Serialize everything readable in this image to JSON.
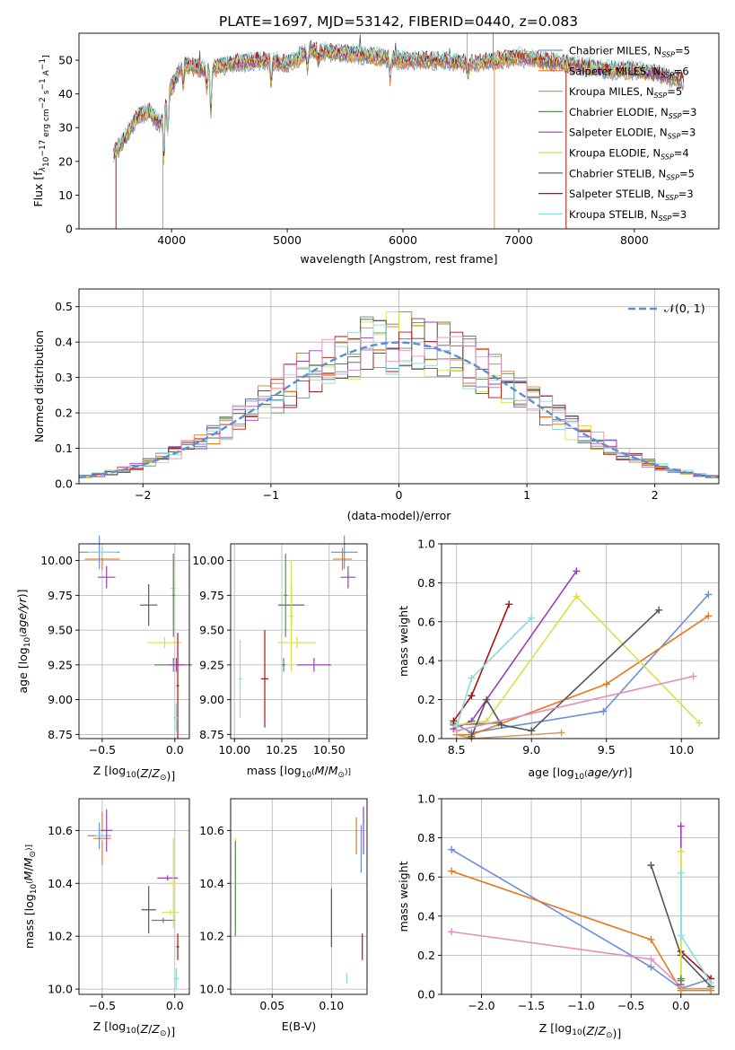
{
  "figure_title": "PLATE=1697, MJD=53142, FIBERID=0440, z=0.083",
  "model_colors": [
    "#6a8fd6",
    "#e8761c",
    "#c9a063",
    "#5d8a5d",
    "#9b3fb8",
    "#d8e04a",
    "#555555",
    "#a81414",
    "#8ddcdc"
  ],
  "chart_data": [
    {
      "id": "spectrum",
      "type": "line",
      "title": "PLATE=1697, MJD=53142, FIBERID=0440, z=0.083",
      "xlabel": "wavelength [Angstrom, rest frame]",
      "ylabel": "Flux [f_λ 10^-17 erg cm^-2 s^-1 A^-1]",
      "xlim": [
        3200,
        8730
      ],
      "ylim": [
        0,
        58
      ],
      "xticks": [
        4000,
        5000,
        6000,
        7000,
        8000
      ],
      "yticks": [
        0,
        10,
        20,
        30,
        40,
        50
      ],
      "grid": false,
      "legend_position": "top-right",
      "series": [
        {
          "name": "Chabrier MILES, N_SSP=5"
        },
        {
          "name": "Salpeter MILES, N_SSP=6"
        },
        {
          "name": "Kroupa MILES, N_SSP=5"
        },
        {
          "name": "Chabrier ELODIE, N_SSP=3"
        },
        {
          "name": "Salpeter ELODIE, N_SSP=3"
        },
        {
          "name": "Kroupa ELODIE, N_SSP=4"
        },
        {
          "name": "Chabrier STELIB, N_SSP=5"
        },
        {
          "name": "Salpeter STELIB, N_SSP=3"
        },
        {
          "name": "Kroupa STELIB, N_SSP=3"
        }
      ],
      "continuum": {
        "x": [
          3500,
          3600,
          3700,
          3800,
          3900,
          4000,
          4100,
          4300,
          4500,
          4800,
          5000,
          5200,
          5500,
          5800,
          6000,
          6300,
          6600,
          6800,
          7000,
          7200,
          7400,
          7600,
          7800,
          8000,
          8200,
          8400
        ],
        "y": [
          22,
          27,
          33,
          35,
          31,
          42,
          49,
          47,
          49,
          50,
          49,
          53,
          52,
          51,
          50,
          50,
          49,
          50,
          51,
          50,
          49,
          48,
          47,
          47,
          46,
          44
        ]
      },
      "absorption_features": [
        {
          "x": 3934,
          "depth": 14
        },
        {
          "x": 3968,
          "depth": 10
        },
        {
          "x": 4102,
          "depth": 6
        },
        {
          "x": 4305,
          "depth": 5
        },
        {
          "x": 4340,
          "depth": 12
        },
        {
          "x": 4861,
          "depth": 6
        },
        {
          "x": 5175,
          "depth": 5
        },
        {
          "x": 5270,
          "depth": 3
        },
        {
          "x": 5890,
          "depth": 6
        },
        {
          "x": 6563,
          "depth": 3
        }
      ]
    },
    {
      "id": "residuals",
      "type": "histogram",
      "xlabel": "(data-model)/error",
      "ylabel": "Normed distribution",
      "xlim": [
        -2.5,
        2.5
      ],
      "ylim": [
        0,
        0.55
      ],
      "xticks": [
        -2,
        -1,
        0,
        1,
        2
      ],
      "yticks": [
        0.0,
        0.1,
        0.2,
        0.3,
        0.4,
        0.5
      ],
      "grid": true,
      "legend_position": "top-right",
      "legend_label": "𝒩(0, 1)",
      "bin_width": 0.1,
      "bin_start": -2.5
    },
    {
      "id": "age-vs-Z",
      "type": "scatter",
      "xlabel": "Z [log10(Z/Z⊙)]",
      "ylabel": "age  [log10(age/yr)]",
      "xlim": [
        -0.66,
        0.1
      ],
      "ylim": [
        8.72,
        10.12
      ],
      "xticks": [
        -0.5,
        0.0
      ],
      "yticks": [
        8.75,
        9.0,
        9.25,
        9.5,
        9.75,
        10.0
      ],
      "grid": true,
      "points": [
        {
          "c": 0,
          "x": -0.52,
          "y": 10.06,
          "ex": 0.14,
          "ey": 0.12
        },
        {
          "c": 1,
          "x": -0.5,
          "y": 10.01,
          "ex": 0.12,
          "ey": 0.08
        },
        {
          "c": 8,
          "x": -0.5,
          "y": 10.06,
          "ex": 0.1,
          "ey": 0.04
        },
        {
          "c": 4,
          "x": -0.47,
          "y": 9.88,
          "ex": 0.06,
          "ey": 0.08
        },
        {
          "c": 6,
          "x": -0.18,
          "y": 9.68,
          "ex": 0.06,
          "ey": 0.15
        },
        {
          "c": 5,
          "x": -0.07,
          "y": 9.41,
          "ex": 0.12,
          "ey": 0.04
        },
        {
          "c": 3,
          "x": -0.01,
          "y": 9.25,
          "ex": 0.13,
          "ey": 0.05
        },
        {
          "c": 4,
          "x": 0.01,
          "y": 9.25,
          "ex": 0.06,
          "ey": 0.05
        },
        {
          "c": 5,
          "x": -0.01,
          "y": 9.8,
          "ex": 0.02,
          "ey": 0.25
        },
        {
          "c": 3,
          "x": -0.01,
          "y": 9.75,
          "ex": 0.01,
          "ey": 0.3
        },
        {
          "c": 7,
          "x": 0.02,
          "y": 9.1,
          "ex": 0.01,
          "ey": 0.38
        },
        {
          "c": 8,
          "x": 0.01,
          "y": 8.87,
          "ex": 0.02,
          "ey": 0.1
        }
      ]
    },
    {
      "id": "age-vs-mass",
      "type": "scatter",
      "xlabel": "mass [log10(M/M⊙)]",
      "ylabel": "",
      "xlim": [
        9.98,
        10.7
      ],
      "ylim": [
        8.72,
        10.12
      ],
      "xticks": [
        10.0,
        10.25,
        10.5
      ],
      "yticks": [
        8.75,
        9.0,
        9.25,
        9.5,
        9.75,
        10.0
      ],
      "grid": true,
      "points": [
        {
          "c": 0,
          "x": 10.58,
          "y": 10.06,
          "ex": 0.07,
          "ey": 0.12
        },
        {
          "c": 1,
          "x": 10.57,
          "y": 10.01,
          "ex": 0.05,
          "ey": 0.08
        },
        {
          "c": 4,
          "x": 10.6,
          "y": 9.88,
          "ex": 0.04,
          "ey": 0.08
        },
        {
          "c": 6,
          "x": 10.3,
          "y": 9.68,
          "ex": 0.07,
          "ey": 0.15
        },
        {
          "c": 3,
          "x": 10.27,
          "y": 9.75,
          "ex": 0.01,
          "ey": 0.3
        },
        {
          "c": 5,
          "x": 10.33,
          "y": 9.41,
          "ex": 0.1,
          "ey": 0.04
        },
        {
          "c": 5,
          "x": 10.3,
          "y": 9.6,
          "ex": 0.01,
          "ey": 0.4
        },
        {
          "c": 4,
          "x": 10.42,
          "y": 9.25,
          "ex": 0.09,
          "ey": 0.05
        },
        {
          "c": 3,
          "x": 10.26,
          "y": 9.25,
          "ex": 0.01,
          "ey": 0.05
        },
        {
          "c": 7,
          "x": 10.16,
          "y": 9.15,
          "ex": 0.02,
          "ey": 0.35
        },
        {
          "c": 8,
          "x": 10.03,
          "y": 9.15,
          "ex": 0.01,
          "ey": 0.28
        }
      ]
    },
    {
      "id": "mass-weight-vs-age",
      "type": "line",
      "xlabel": "age  [log10(age/yr)]",
      "ylabel": "mass weight",
      "xlim": [
        8.4,
        10.25
      ],
      "ylim": [
        0,
        1
      ],
      "xticks": [
        8.5,
        9.0,
        9.5,
        10.0
      ],
      "yticks": [
        0.0,
        0.2,
        0.4,
        0.6,
        0.8,
        1.0
      ],
      "grid": true,
      "series": [
        {
          "c": 0,
          "x": [
            8.48,
            8.6,
            9.48,
            10.18
          ],
          "y": [
            0.08,
            0.03,
            0.14,
            0.74
          ]
        },
        {
          "c": 1,
          "x": [
            8.5,
            8.6,
            9.5,
            10.18
          ],
          "y": [
            0.02,
            0.02,
            0.28,
            0.63
          ]
        },
        {
          "c": 2,
          "x": [
            8.5,
            8.6,
            9.2
          ],
          "y": [
            0.02,
            0.0,
            0.03
          ]
        },
        {
          "c": 3,
          "x": [
            8.48,
            8.78
          ],
          "y": [
            0.07,
            0.08
          ]
        },
        {
          "c": 4,
          "x": [
            8.48,
            8.6,
            9.3
          ],
          "y": [
            0.05,
            0.09,
            0.86
          ]
        },
        {
          "c": 5,
          "x": [
            8.5,
            8.7,
            9.3,
            10.12
          ],
          "y": [
            0.07,
            0.09,
            0.73,
            0.08
          ]
        },
        {
          "c": 6,
          "x": [
            8.6,
            8.7,
            8.8,
            9.0,
            9.85
          ],
          "y": [
            0.01,
            0.2,
            0.07,
            0.04,
            0.66
          ]
        },
        {
          "c": 7,
          "x": [
            8.48,
            8.6,
            8.85
          ],
          "y": [
            0.09,
            0.22,
            0.69
          ]
        },
        {
          "c": 8,
          "x": [
            8.5,
            8.6,
            9.0
          ],
          "y": [
            0.06,
            0.31,
            0.62
          ]
        },
        {
          "c": 9,
          "x": [
            8.5,
            10.08
          ],
          "y": [
            0.04,
            0.32
          ]
        }
      ]
    },
    {
      "id": "mass-vs-Z",
      "type": "scatter",
      "xlabel": "Z [log10(Z/Z⊙)]",
      "ylabel": "mass [log10(M/M⊙)]",
      "xlim": [
        -0.66,
        0.1
      ],
      "ylim": [
        9.98,
        10.72
      ],
      "xticks": [
        -0.5,
        0.0
      ],
      "yticks": [
        10.0,
        10.2,
        10.4,
        10.6
      ],
      "grid": true,
      "points": [
        {
          "c": 0,
          "x": -0.52,
          "y": 10.58,
          "ex": 0.08,
          "ey": 0.05
        },
        {
          "c": 1,
          "x": -0.5,
          "y": 10.57,
          "ex": 0.06,
          "ey": 0.1
        },
        {
          "c": 8,
          "x": -0.5,
          "y": 10.58,
          "ex": 0.05,
          "ey": 0.02
        },
        {
          "c": 4,
          "x": -0.47,
          "y": 10.6,
          "ex": 0.04,
          "ey": 0.08
        },
        {
          "c": 6,
          "x": -0.18,
          "y": 10.3,
          "ex": 0.05,
          "ey": 0.09
        },
        {
          "c": 4,
          "x": -0.05,
          "y": 10.42,
          "ex": 0.07,
          "ey": 0.01
        },
        {
          "c": 3,
          "x": -0.08,
          "y": 10.26,
          "ex": 0.08,
          "ey": 0.01
        },
        {
          "c": 5,
          "x": -0.01,
          "y": 10.4,
          "ex": 0.03,
          "ey": 0.17
        },
        {
          "c": 5,
          "x": -0.03,
          "y": 10.29,
          "ex": 0.06,
          "ey": 0.01
        },
        {
          "c": 7,
          "x": 0.02,
          "y": 10.16,
          "ex": 0.01,
          "ey": 0.05
        },
        {
          "c": 8,
          "x": 0.01,
          "y": 10.04,
          "ex": 0.02,
          "ey": 0.04
        }
      ]
    },
    {
      "id": "mass-vs-ebv",
      "type": "scatter",
      "xlabel": "E(B-V)",
      "ylabel": "",
      "xlim": [
        0.015,
        0.13
      ],
      "ylim": [
        9.98,
        10.72
      ],
      "xticks": [
        0.05,
        0.1
      ],
      "yticks": [
        10.0,
        10.2,
        10.4,
        10.6
      ],
      "grid": true,
      "points": [
        {
          "c": 5,
          "x": 0.019,
          "y": 10.4,
          "ey": 0.17
        },
        {
          "c": 3,
          "x": 0.019,
          "y": 10.38,
          "ey": 0.18
        },
        {
          "c": 6,
          "x": 0.1,
          "y": 10.27,
          "ey": 0.11
        },
        {
          "c": 8,
          "x": 0.113,
          "y": 10.04,
          "ey": 0.02
        },
        {
          "c": 1,
          "x": 0.121,
          "y": 10.58,
          "ey": 0.07
        },
        {
          "c": 0,
          "x": 0.125,
          "y": 10.53,
          "ey": 0.09
        },
        {
          "c": 4,
          "x": 0.127,
          "y": 10.6,
          "ey": 0.09
        },
        {
          "c": 7,
          "x": 0.126,
          "y": 10.16,
          "ey": 0.05
        }
      ]
    },
    {
      "id": "mass-weight-vs-Z",
      "type": "line",
      "xlabel": "Z [log10(Z/Z⊙)]",
      "ylabel": "mass weight",
      "xlim": [
        -2.4,
        0.38
      ],
      "ylim": [
        0,
        1
      ],
      "xticks": [
        -2.0,
        -1.5,
        -1.0,
        -0.5,
        0.0
      ],
      "yticks": [
        0.0,
        0.2,
        0.4,
        0.6,
        0.8,
        1.0
      ],
      "grid": true,
      "series": [
        {
          "c": 0,
          "x": [
            -2.3,
            -0.3,
            0.0,
            0.3
          ],
          "y": [
            0.74,
            0.14,
            0.03,
            0.08
          ]
        },
        {
          "c": 1,
          "x": [
            -2.3,
            -0.3,
            0.0,
            0.3
          ],
          "y": [
            0.63,
            0.28,
            0.02,
            0.02
          ]
        },
        {
          "c": 9,
          "x": [
            -2.3,
            -0.3,
            0.0
          ],
          "y": [
            0.32,
            0.18,
            0.04
          ]
        },
        {
          "c": 6,
          "x": [
            -0.3,
            0.0,
            0.3
          ],
          "y": [
            0.66,
            0.2,
            0.04
          ]
        },
        {
          "c": 7,
          "x": [
            0.0,
            0.3
          ],
          "y": [
            0.22,
            0.08
          ]
        },
        {
          "c": 4,
          "x": [
            0.0,
            0.0
          ],
          "y": [
            0.86,
            0.05
          ]
        },
        {
          "c": 5,
          "x": [
            0.0,
            0.0
          ],
          "y": [
            0.73,
            0.08
          ]
        },
        {
          "c": 8,
          "x": [
            0.0,
            0.0,
            0.3
          ],
          "y": [
            0.62,
            0.3,
            0.06
          ]
        },
        {
          "c": 2,
          "x": [
            0.0,
            0.3
          ],
          "y": [
            0.03,
            0.03
          ]
        },
        {
          "c": 3,
          "x": [
            0.0,
            0.0
          ],
          "y": [
            0.08,
            0.07
          ]
        }
      ]
    }
  ]
}
